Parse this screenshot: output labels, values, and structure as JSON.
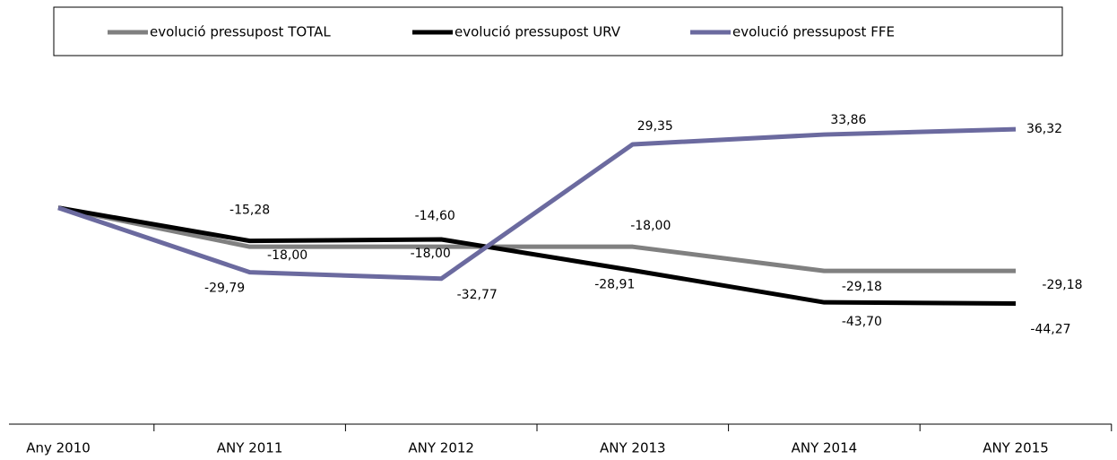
{
  "chart_data": {
    "type": "line",
    "categories": [
      "Any 2010",
      "ANY 2011",
      "ANY 2012",
      "ANY 2013",
      "ANY 2014",
      "ANY 2015"
    ],
    "series": [
      {
        "name": "evolució pressupost TOTAL",
        "color": "#808080",
        "values": [
          0,
          -18.0,
          -18.0,
          -18.0,
          -29.18,
          -29.18
        ],
        "value_labels": [
          null,
          "-18,00",
          "-18,00",
          "-18,00",
          "-29,18",
          "-29,18"
        ]
      },
      {
        "name": "evolució pressupost URV",
        "color": "#000000",
        "values": [
          0,
          -15.28,
          -14.6,
          -28.91,
          -43.7,
          -44.27
        ],
        "value_labels": [
          null,
          "-15,28",
          "-14,60",
          "-28,91",
          "-43,70",
          "-44,27"
        ]
      },
      {
        "name": "evolució pressupost FFE",
        "color": "#6b6a9f",
        "values": [
          0,
          -29.79,
          -32.77,
          29.35,
          33.86,
          36.32
        ],
        "value_labels": [
          null,
          "-29,79",
          "-32,77",
          "29,35",
          "33,86",
          "36,32"
        ]
      }
    ],
    "ylim": [
      -100,
      60
    ],
    "legend": "top"
  }
}
